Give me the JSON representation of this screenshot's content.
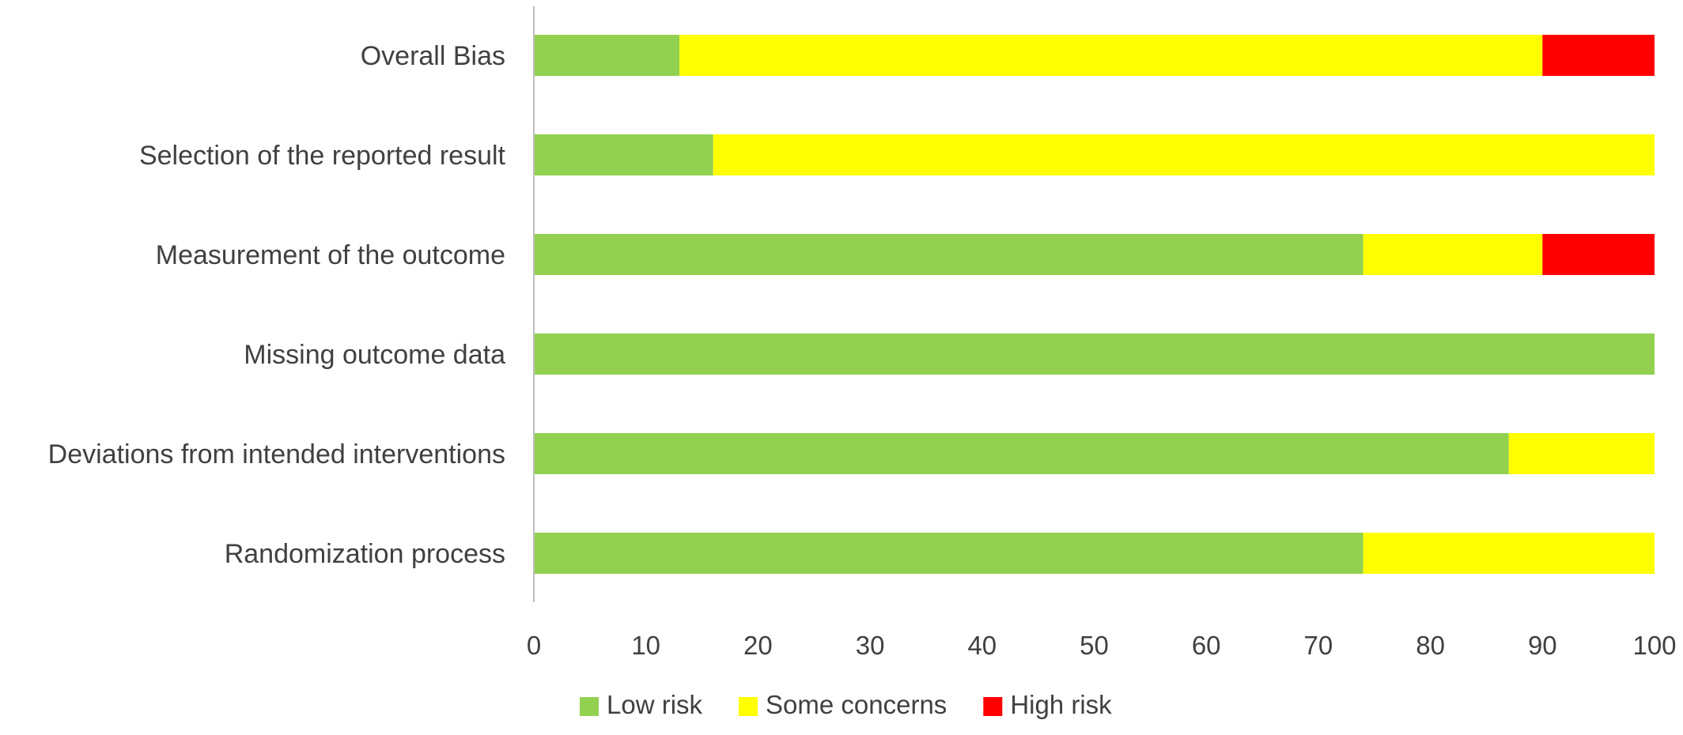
{
  "chart_data": {
    "type": "bar",
    "orientation": "horizontal",
    "stacked": true,
    "title": "",
    "xlabel": "",
    "ylabel": "",
    "xlim": [
      0,
      100
    ],
    "x_ticks": [
      0,
      10,
      20,
      30,
      40,
      50,
      60,
      70,
      80,
      90,
      100
    ],
    "grid": false,
    "legend_position": "bottom",
    "categories": [
      "Overall Bias",
      "Selection of the reported result",
      "Measurement of the outcome",
      "Missing outcome data",
      "Deviations from intended interventions",
      "Randomization process"
    ],
    "series": [
      {
        "name": "Low risk",
        "color": "#92D050",
        "values": [
          13,
          16,
          74,
          100,
          87,
          74
        ]
      },
      {
        "name": "Some concerns",
        "color": "#FFFF00",
        "values": [
          77,
          84,
          16,
          0,
          13,
          26
        ]
      },
      {
        "name": "High risk",
        "color": "#FF0000",
        "values": [
          10,
          0,
          10,
          0,
          0,
          0
        ]
      }
    ]
  }
}
